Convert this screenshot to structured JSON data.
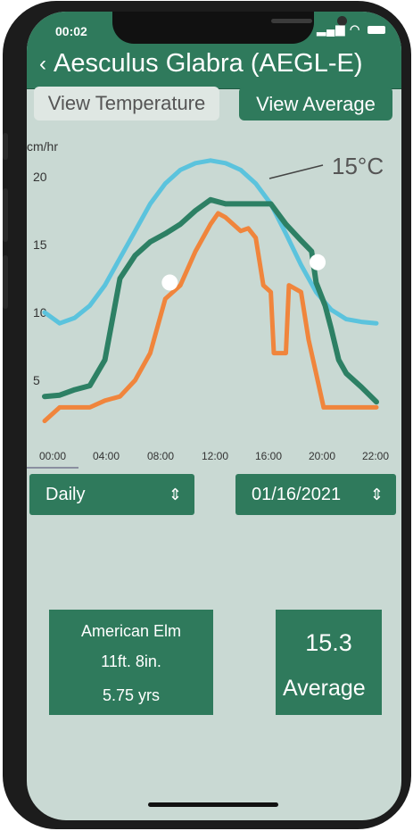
{
  "status": {
    "time": "00:02"
  },
  "header": {
    "back_icon": "chevron-left-icon",
    "title": "Aesculus Glabra (AEGL-E)"
  },
  "toolbar": {
    "view_temperature": "View Temperature",
    "view_average": "View Average"
  },
  "chart_data": {
    "type": "line",
    "ylabel": "cm/hr",
    "y_ticks": [
      "20",
      "15",
      "10",
      "5"
    ],
    "x_ticks": [
      "00:00",
      "04:00",
      "08:00",
      "12:00",
      "16:00",
      "20:00",
      "22:00"
    ],
    "annotation": "15°C",
    "colors": {
      "temperature": "#5bc3dd",
      "average": "#2d8064",
      "growth": "#f0853c"
    },
    "series": [
      {
        "key": "temperature",
        "x": [
          0,
          1,
          2,
          3,
          4,
          5,
          6,
          7,
          8,
          9,
          10,
          11,
          12,
          13,
          14,
          15,
          16,
          17,
          18,
          19,
          20,
          21,
          22
        ],
        "y": [
          10,
          9.2,
          9.6,
          10.5,
          12,
          14,
          16,
          18,
          19.5,
          20.5,
          21,
          21.2,
          21,
          20.5,
          19.5,
          18,
          15.8,
          13.5,
          11.5,
          10.2,
          9.5,
          9.3,
          9.2
        ]
      },
      {
        "key": "average",
        "x": [
          0,
          1,
          2,
          3,
          4,
          5,
          6,
          7,
          8,
          9,
          10,
          11,
          12,
          13,
          14,
          15,
          16,
          17,
          17.7,
          18,
          18.6,
          19,
          19.5,
          20,
          21,
          22
        ],
        "y": [
          3.8,
          3.9,
          4.3,
          4.6,
          6.5,
          12.5,
          14.2,
          15.2,
          15.8,
          16.5,
          17.5,
          18.3,
          18,
          18,
          18,
          18,
          16.5,
          15.3,
          14.5,
          12.2,
          10.5,
          8.8,
          6.5,
          5.5,
          4.5,
          3.4
        ]
      },
      {
        "key": "growth",
        "x": [
          0,
          1,
          2,
          3,
          4,
          5,
          6,
          7,
          8,
          9,
          10,
          11,
          11.5,
          12,
          13,
          13.5,
          14,
          14.5,
          15,
          15.2,
          16,
          16.2,
          17,
          17.5,
          18,
          18.5,
          19,
          20,
          21,
          22
        ],
        "y": [
          2,
          3,
          3,
          3,
          3.5,
          3.8,
          5,
          7,
          11,
          12,
          14.5,
          16.5,
          17.3,
          17,
          16,
          16.2,
          15.5,
          12,
          11.5,
          7,
          7,
          12,
          11.5,
          8,
          5.5,
          3,
          3,
          3,
          3,
          3
        ]
      }
    ],
    "markers": [
      {
        "series": "growth",
        "x": 8.3,
        "y": 12.2
      },
      {
        "series": "average",
        "x": 18.1,
        "y": 13.7
      }
    ]
  },
  "controls": {
    "period": "Daily",
    "date": "01/16/2021"
  },
  "summary": {
    "species": "American Elm",
    "height": "11ft. 8in.",
    "age": "5.75 yrs",
    "value": "15.3",
    "value_label": "Average"
  }
}
